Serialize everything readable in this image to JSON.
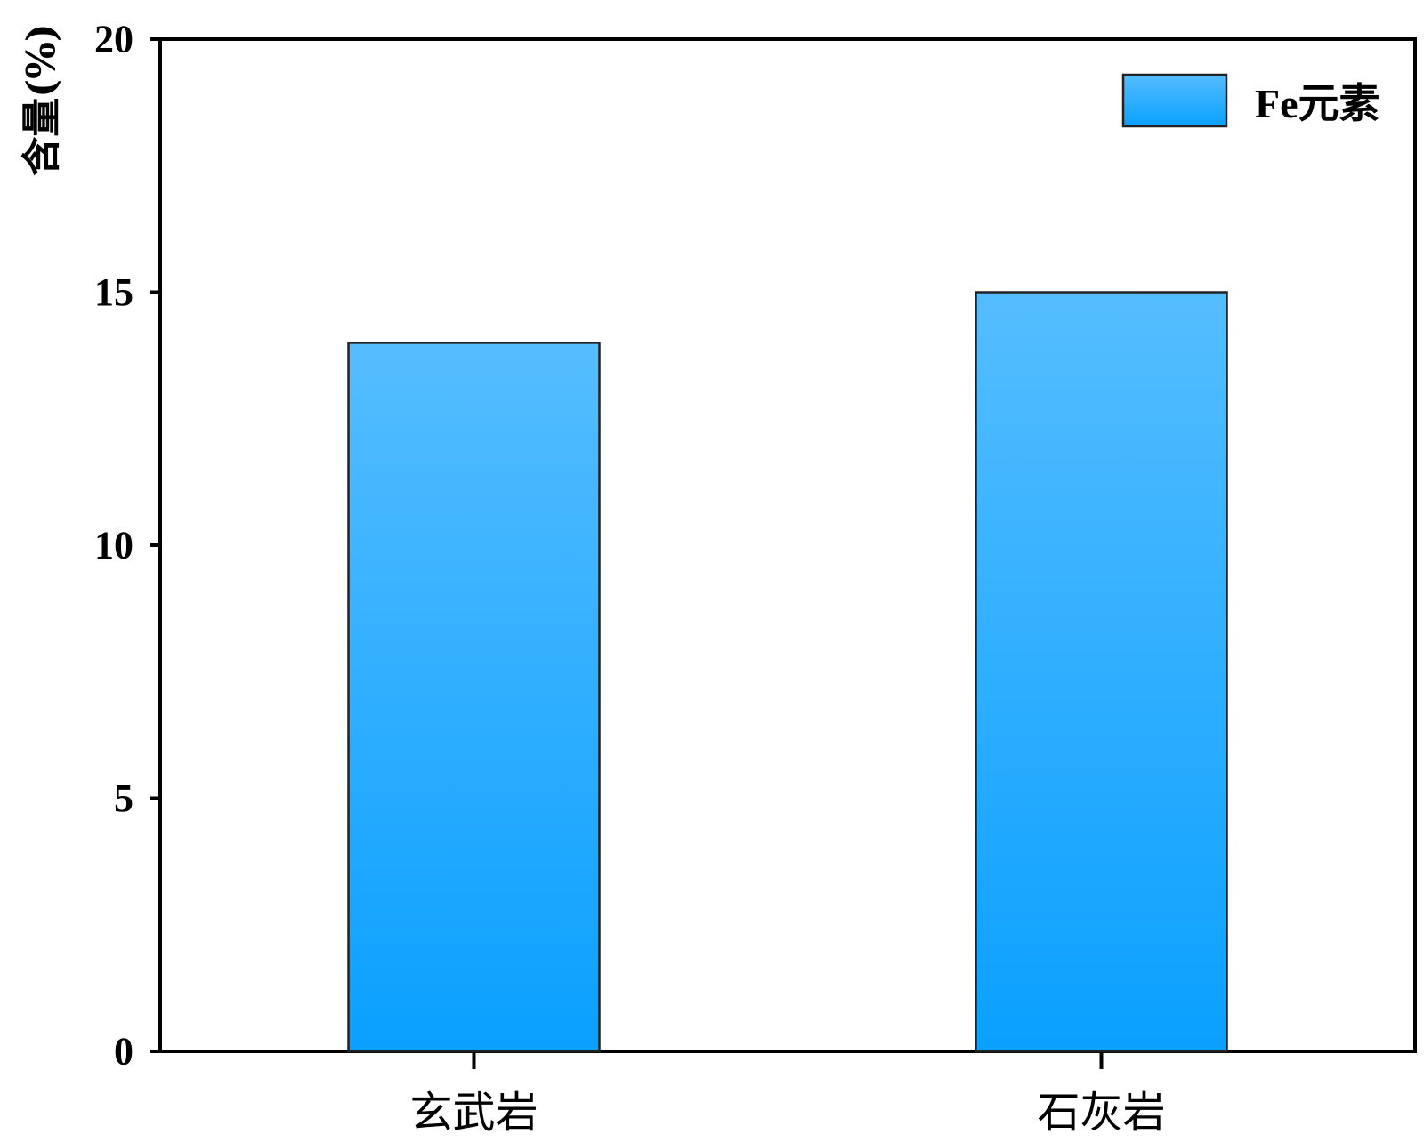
{
  "chart_data": {
    "type": "bar",
    "categories": [
      "玄武岩",
      "石灰岩"
    ],
    "series": [
      {
        "name": "Fe元素",
        "values": [
          14,
          15
        ],
        "color": "#2aa7ff"
      }
    ],
    "xlabel": "",
    "ylabel": "含量(%)",
    "ylim": [
      0,
      20
    ],
    "yticks": [
      0,
      5,
      10,
      15,
      20
    ],
    "grid": false,
    "legend_position": "top-right",
    "colors": {
      "bar_top": "#55bdff",
      "bar_bottom": "#0aa0ff",
      "axis": "#000000"
    }
  }
}
